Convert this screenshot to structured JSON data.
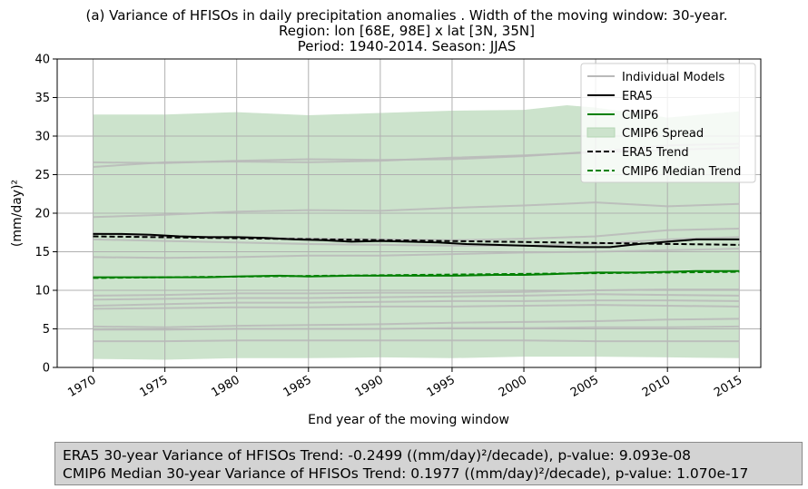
{
  "chart_data": {
    "type": "line",
    "title_lines": [
      "(a) Variance of HFISOs in daily precipitation anomalies . Width of the moving window: 30-year.",
      "Region: lon [68E, 98E] x lat [3N, 35N]",
      "Period: 1940-2014. Season: JJAS"
    ],
    "xlabel": "End year of the moving window",
    "ylabel": "(mm/day)²",
    "xlim": [
      1967.5,
      2016.5
    ],
    "ylim": [
      0,
      40
    ],
    "x_ticks": [
      1970,
      1975,
      1980,
      1985,
      1990,
      1995,
      2000,
      2005,
      2010,
      2015
    ],
    "y_ticks": [
      0,
      5,
      10,
      15,
      20,
      25,
      30,
      35,
      40
    ],
    "grid": true,
    "legend_position": "top-right",
    "legend": [
      "Individual Models",
      "ERA5",
      "CMIP6",
      "CMIP6 Spread",
      "ERA5 Trend",
      "CMIP6 Median Trend"
    ],
    "colors": {
      "individual": "#b9b9b9",
      "era5": "#000000",
      "cmip6": "#008000",
      "spread": "#cce3cc",
      "grid": "#b0b0b0"
    },
    "x_range": [
      1970,
      2015
    ],
    "spread_upper": [
      [
        1970,
        32.8
      ],
      [
        1975,
        32.8
      ],
      [
        1980,
        33.1
      ],
      [
        1985,
        32.7
      ],
      [
        1990,
        33.0
      ],
      [
        1995,
        33.3
      ],
      [
        2000,
        33.4
      ],
      [
        2003,
        34.0
      ],
      [
        2005,
        33.7
      ],
      [
        2010,
        32.4
      ],
      [
        2015,
        33.2
      ]
    ],
    "spread_lower": [
      [
        1970,
        1.1
      ],
      [
        1975,
        1.0
      ],
      [
        1980,
        1.2
      ],
      [
        1985,
        1.2
      ],
      [
        1990,
        1.3
      ],
      [
        1995,
        1.2
      ],
      [
        2000,
        1.4
      ],
      [
        2005,
        1.4
      ],
      [
        2010,
        1.3
      ],
      [
        2015,
        1.2
      ]
    ],
    "individual_models": [
      [
        [
          1970,
          26.0
        ],
        [
          1975,
          26.6
        ],
        [
          1980,
          26.7
        ],
        [
          1985,
          26.6
        ],
        [
          1990,
          26.8
        ],
        [
          1995,
          27.2
        ],
        [
          2000,
          27.5
        ],
        [
          2005,
          27.9
        ],
        [
          2010,
          28.2
        ],
        [
          2015,
          28.5
        ]
      ],
      [
        [
          1970,
          26.6
        ],
        [
          1975,
          26.5
        ],
        [
          1980,
          26.8
        ],
        [
          1985,
          27.0
        ],
        [
          1990,
          26.9
        ],
        [
          1995,
          27.0
        ],
        [
          2000,
          27.4
        ],
        [
          2005,
          28.0
        ],
        [
          2010,
          28.8
        ],
        [
          2015,
          29.0
        ]
      ],
      [
        [
          1970,
          19.5
        ],
        [
          1975,
          19.8
        ],
        [
          1980,
          20.2
        ],
        [
          1985,
          20.4
        ],
        [
          1990,
          20.3
        ],
        [
          1995,
          20.7
        ],
        [
          2000,
          21.0
        ],
        [
          2005,
          21.4
        ],
        [
          2010,
          20.9
        ],
        [
          2015,
          21.2
        ]
      ],
      [
        [
          1970,
          17.4
        ],
        [
          1975,
          17.0
        ],
        [
          1980,
          16.9
        ],
        [
          1985,
          16.7
        ],
        [
          1990,
          16.6
        ],
        [
          1995,
          16.5
        ],
        [
          2000,
          16.7
        ],
        [
          2005,
          17.0
        ],
        [
          2010,
          17.8
        ],
        [
          2015,
          18.0
        ]
      ],
      [
        [
          1970,
          16.6
        ],
        [
          1975,
          16.4
        ],
        [
          1980,
          16.2
        ],
        [
          1985,
          16.0
        ],
        [
          1990,
          15.9
        ],
        [
          1995,
          15.8
        ],
        [
          2000,
          15.8
        ],
        [
          2005,
          16.0
        ],
        [
          2010,
          16.6
        ],
        [
          2015,
          16.9
        ]
      ],
      [
        [
          1970,
          14.3
        ],
        [
          1975,
          14.2
        ],
        [
          1980,
          14.3
        ],
        [
          1985,
          14.5
        ],
        [
          1990,
          14.5
        ],
        [
          1995,
          14.7
        ],
        [
          2000,
          14.9
        ],
        [
          2005,
          15.0
        ],
        [
          2010,
          15.2
        ],
        [
          2015,
          15.4
        ]
      ],
      [
        [
          1970,
          9.3
        ],
        [
          1975,
          9.4
        ],
        [
          1980,
          9.6
        ],
        [
          1985,
          9.6
        ],
        [
          1990,
          9.7
        ],
        [
          1995,
          9.7
        ],
        [
          2000,
          9.8
        ],
        [
          2005,
          10.0
        ],
        [
          2010,
          10.1
        ],
        [
          2015,
          10.1
        ]
      ],
      [
        [
          1970,
          8.8
        ],
        [
          1975,
          8.9
        ],
        [
          1980,
          9.0
        ],
        [
          1985,
          9.0
        ],
        [
          1990,
          9.1
        ],
        [
          1995,
          9.2
        ],
        [
          2000,
          9.3
        ],
        [
          2005,
          9.5
        ],
        [
          2010,
          9.4
        ],
        [
          2015,
          9.3
        ]
      ],
      [
        [
          1970,
          8.0
        ],
        [
          1975,
          8.2
        ],
        [
          1980,
          8.4
        ],
        [
          1985,
          8.4
        ],
        [
          1990,
          8.5
        ],
        [
          1995,
          8.6
        ],
        [
          2000,
          8.6
        ],
        [
          2005,
          8.7
        ],
        [
          2010,
          8.7
        ],
        [
          2015,
          8.6
        ]
      ],
      [
        [
          1970,
          7.6
        ],
        [
          1975,
          7.7
        ],
        [
          1980,
          7.8
        ],
        [
          1985,
          7.8
        ],
        [
          1990,
          7.9
        ],
        [
          1995,
          7.9
        ],
        [
          2000,
          8.0
        ],
        [
          2005,
          8.1
        ],
        [
          2010,
          8.0
        ],
        [
          2015,
          7.9
        ]
      ],
      [
        [
          1970,
          5.3
        ],
        [
          1975,
          5.2
        ],
        [
          1980,
          5.4
        ],
        [
          1985,
          5.5
        ],
        [
          1990,
          5.6
        ],
        [
          1995,
          5.8
        ],
        [
          2000,
          5.9
        ],
        [
          2005,
          6.0
        ],
        [
          2010,
          6.2
        ],
        [
          2015,
          6.3
        ]
      ],
      [
        [
          1970,
          4.9
        ],
        [
          1975,
          4.9
        ],
        [
          1980,
          5.0
        ],
        [
          1985,
          5.0
        ],
        [
          1990,
          5.0
        ],
        [
          1995,
          5.1
        ],
        [
          2000,
          5.1
        ],
        [
          2005,
          5.2
        ],
        [
          2010,
          5.2
        ],
        [
          2015,
          5.3
        ]
      ],
      [
        [
          1970,
          3.4
        ],
        [
          1975,
          3.4
        ],
        [
          1980,
          3.5
        ],
        [
          1985,
          3.5
        ],
        [
          1990,
          3.5
        ],
        [
          1995,
          3.5
        ],
        [
          2000,
          3.5
        ],
        [
          2005,
          3.4
        ],
        [
          2010,
          3.4
        ],
        [
          2015,
          3.4
        ]
      ]
    ],
    "era5": [
      [
        1970,
        17.3
      ],
      [
        1972,
        17.3
      ],
      [
        1974,
        17.2
      ],
      [
        1976,
        17.0
      ],
      [
        1978,
        16.9
      ],
      [
        1980,
        16.9
      ],
      [
        1982,
        16.8
      ],
      [
        1984,
        16.6
      ],
      [
        1986,
        16.5
      ],
      [
        1988,
        16.3
      ],
      [
        1990,
        16.4
      ],
      [
        1992,
        16.3
      ],
      [
        1994,
        16.2
      ],
      [
        1996,
        16.0
      ],
      [
        1998,
        15.9
      ],
      [
        2000,
        15.8
      ],
      [
        2002,
        15.7
      ],
      [
        2004,
        15.6
      ],
      [
        2006,
        15.6
      ],
      [
        2008,
        16.0
      ],
      [
        2010,
        16.3
      ],
      [
        2012,
        16.6
      ],
      [
        2015,
        16.6
      ]
    ],
    "cmip6": [
      [
        1970,
        11.7
      ],
      [
        1972,
        11.7
      ],
      [
        1975,
        11.7
      ],
      [
        1978,
        11.7
      ],
      [
        1980,
        11.8
      ],
      [
        1983,
        11.9
      ],
      [
        1985,
        11.8
      ],
      [
        1988,
        11.9
      ],
      [
        1990,
        11.9
      ],
      [
        1993,
        11.9
      ],
      [
        1995,
        11.9
      ],
      [
        1998,
        12.0
      ],
      [
        2000,
        12.0
      ],
      [
        2002,
        12.1
      ],
      [
        2005,
        12.3
      ],
      [
        2008,
        12.3
      ],
      [
        2010,
        12.4
      ],
      [
        2012,
        12.5
      ],
      [
        2015,
        12.5
      ]
    ],
    "era5_trend": [
      [
        1970,
        17.0
      ],
      [
        2015,
        15.9
      ]
    ],
    "cmip6_median_trend": [
      [
        1970,
        11.6
      ],
      [
        2015,
        12.4
      ]
    ]
  },
  "stats": {
    "era5_line": "ERA5 30-year Variance of HFISOs Trend: -0.2499 ((mm/day)²/decade), p-value: 9.093e-08",
    "cmip6_line": "CMIP6 Median 30-year Variance of HFISOs Trend: 0.1977 ((mm/day)²/decade), p-value: 1.070e-17"
  }
}
